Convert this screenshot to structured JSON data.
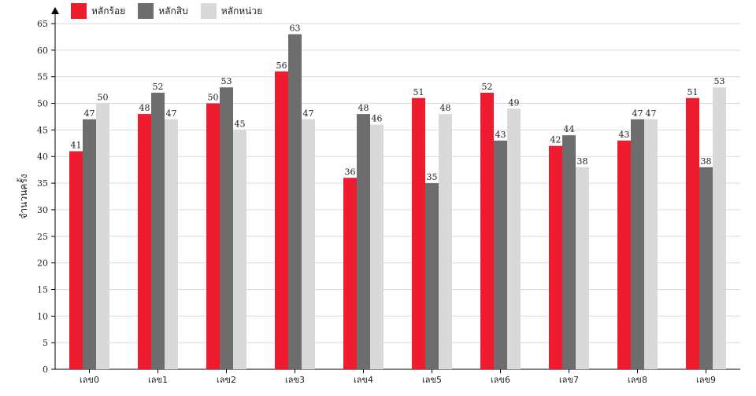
{
  "chart_data": {
    "type": "bar",
    "title": "",
    "xlabel": "",
    "ylabel": "จำนวนครั้ง",
    "categories": [
      "เลข0",
      "เลข1",
      "เลข2",
      "เลข3",
      "เลข4",
      "เลข5",
      "เลข6",
      "เลข7",
      "เลข8",
      "เลข9"
    ],
    "series": [
      {
        "name": "หลักร้อย",
        "color": "#ee1c2e",
        "values": [
          41,
          48,
          50,
          56,
          36,
          51,
          52,
          42,
          43,
          51
        ]
      },
      {
        "name": "หลักสิบ",
        "color": "#6d6d6d",
        "values": [
          47,
          52,
          53,
          63,
          48,
          35,
          43,
          44,
          47,
          38
        ]
      },
      {
        "name": "หลักหน่วย",
        "color": "#d9d9d9",
        "values": [
          50,
          47,
          45,
          47,
          46,
          48,
          49,
          38,
          47,
          53
        ]
      }
    ],
    "ylim": [
      0,
      65
    ],
    "yticks": [
      0,
      5,
      10,
      15,
      20,
      25,
      30,
      35,
      40,
      45,
      50,
      55,
      60,
      65
    ],
    "grid": true,
    "legend_position": "top-left",
    "data_labels": true
  }
}
